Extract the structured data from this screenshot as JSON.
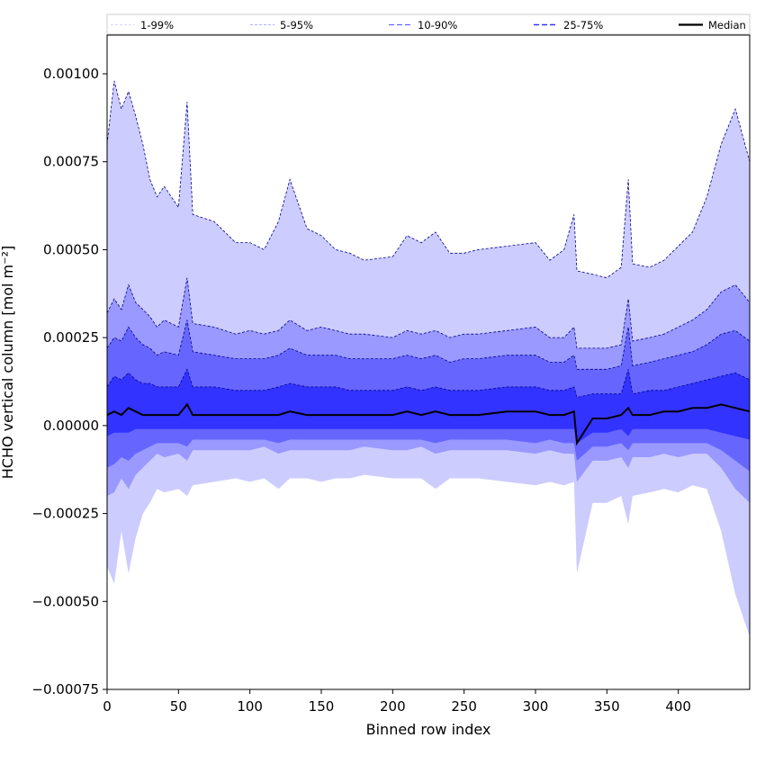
{
  "chart_data": {
    "type": "area",
    "xlabel": "Binned row index",
    "ylabel": "HCHO vertical column [mol m⁻²]",
    "xlim": [
      0,
      450
    ],
    "ylim": [
      -0.00075,
      0.00111
    ],
    "x_ticks": [
      0,
      50,
      100,
      150,
      200,
      250,
      300,
      350,
      400
    ],
    "x_tick_labels": [
      "0",
      "50",
      "100",
      "150",
      "200",
      "250",
      "300",
      "350",
      "400"
    ],
    "y_ticks": [
      -0.00075,
      -0.0005,
      -0.00025,
      0.0,
      0.00025,
      0.0005,
      0.00075,
      0.001
    ],
    "y_tick_labels": [
      "−0.00075",
      "−0.00050",
      "−0.00025",
      "0.00000",
      "0.00025",
      "0.00050",
      "0.00075",
      "0.00100"
    ],
    "grid": false,
    "legend_position": "top",
    "x": [
      0,
      5,
      10,
      15,
      20,
      25,
      30,
      35,
      40,
      50,
      56,
      60,
      75,
      90,
      100,
      110,
      120,
      128,
      140,
      150,
      160,
      170,
      180,
      200,
      210,
      220,
      230,
      240,
      250,
      260,
      280,
      300,
      310,
      320,
      327,
      329,
      340,
      350,
      360,
      365,
      368,
      380,
      390,
      400,
      410,
      420,
      430,
      440,
      450
    ],
    "bands": [
      {
        "name": "1-99%",
        "color": "#ccccff",
        "upper": [
          0.0008,
          0.00098,
          0.0009,
          0.00095,
          0.00088,
          0.0008,
          0.0007,
          0.00065,
          0.00068,
          0.00062,
          0.00092,
          0.0006,
          0.00058,
          0.00052,
          0.00052,
          0.0005,
          0.00058,
          0.0007,
          0.00056,
          0.00054,
          0.0005,
          0.00049,
          0.00047,
          0.00048,
          0.00054,
          0.00052,
          0.00055,
          0.00049,
          0.00049,
          0.0005,
          0.00051,
          0.00052,
          0.00047,
          0.0005,
          0.0006,
          0.00044,
          0.00043,
          0.00042,
          0.00045,
          0.0007,
          0.00046,
          0.00045,
          0.00047,
          0.00051,
          0.00055,
          0.00065,
          0.0008,
          0.0009,
          0.00075
        ],
        "lower": [
          -0.0004,
          -0.00045,
          -0.0003,
          -0.00042,
          -0.00032,
          -0.00025,
          -0.00022,
          -0.00018,
          -0.00019,
          -0.00018,
          -0.0002,
          -0.00017,
          -0.00016,
          -0.00015,
          -0.00016,
          -0.00015,
          -0.00018,
          -0.00015,
          -0.00015,
          -0.00016,
          -0.00015,
          -0.00015,
          -0.00014,
          -0.00015,
          -0.00015,
          -0.00015,
          -0.00018,
          -0.00015,
          -0.00015,
          -0.00015,
          -0.00016,
          -0.00017,
          -0.00016,
          -0.00017,
          -0.00016,
          -0.00042,
          -0.00022,
          -0.00022,
          -0.0002,
          -0.00028,
          -0.0002,
          -0.00019,
          -0.00018,
          -0.00019,
          -0.00017,
          -0.00018,
          -0.0003,
          -0.00048,
          -0.0006
        ]
      },
      {
        "name": "5-95%",
        "color": "#9999ff",
        "upper": [
          0.00032,
          0.00036,
          0.00033,
          0.0004,
          0.00035,
          0.00033,
          0.00031,
          0.00028,
          0.0003,
          0.00028,
          0.00042,
          0.00029,
          0.00028,
          0.00026,
          0.00027,
          0.00026,
          0.00027,
          0.0003,
          0.00027,
          0.00028,
          0.00027,
          0.00026,
          0.00026,
          0.00025,
          0.00027,
          0.00026,
          0.00027,
          0.00025,
          0.00026,
          0.00026,
          0.00027,
          0.00028,
          0.00025,
          0.00025,
          0.00028,
          0.00022,
          0.00022,
          0.00022,
          0.00023,
          0.00036,
          0.00024,
          0.00025,
          0.00026,
          0.00028,
          0.0003,
          0.00033,
          0.00038,
          0.0004,
          0.00035
        ],
        "lower": [
          -0.0002,
          -0.00019,
          -0.00015,
          -0.00018,
          -0.00014,
          -0.00012,
          -0.0001,
          -8e-05,
          -9e-05,
          -8e-05,
          -0.0001,
          -7e-05,
          -7e-05,
          -7e-05,
          -7e-05,
          -6e-05,
          -8e-05,
          -7e-05,
          -7e-05,
          -7e-05,
          -7e-05,
          -7e-05,
          -6e-05,
          -7e-05,
          -7e-05,
          -6e-05,
          -8e-05,
          -7e-05,
          -7e-05,
          -7e-05,
          -7e-05,
          -8e-05,
          -7e-05,
          -8e-05,
          -8e-05,
          -0.00016,
          -0.0001,
          -0.0001,
          -9e-05,
          -0.00012,
          -9e-05,
          -9e-05,
          -8e-05,
          -9e-05,
          -8e-05,
          -8e-05,
          -0.00012,
          -0.00018,
          -0.00022
        ]
      },
      {
        "name": "10-90%",
        "color": "#6666ff",
        "upper": [
          0.00022,
          0.00025,
          0.00024,
          0.00028,
          0.00025,
          0.00023,
          0.00022,
          0.0002,
          0.00021,
          0.0002,
          0.0003,
          0.00021,
          0.0002,
          0.00019,
          0.00019,
          0.00019,
          0.0002,
          0.00022,
          0.0002,
          0.0002,
          0.0002,
          0.00019,
          0.00019,
          0.00019,
          0.0002,
          0.00019,
          0.0002,
          0.00018,
          0.00019,
          0.00019,
          0.0002,
          0.0002,
          0.00018,
          0.00018,
          0.0002,
          0.00016,
          0.00016,
          0.00016,
          0.00017,
          0.00028,
          0.00017,
          0.00018,
          0.00019,
          0.0002,
          0.00021,
          0.00023,
          0.00026,
          0.00027,
          0.00024
        ],
        "lower": [
          -0.00012,
          -0.00011,
          -9e-05,
          -0.0001,
          -8e-05,
          -7e-05,
          -6e-05,
          -5e-05,
          -5e-05,
          -5e-05,
          -6e-05,
          -4e-05,
          -4e-05,
          -4e-05,
          -4e-05,
          -4e-05,
          -5e-05,
          -4e-05,
          -4e-05,
          -4e-05,
          -4e-05,
          -4e-05,
          -4e-05,
          -4e-05,
          -4e-05,
          -4e-05,
          -5e-05,
          -4e-05,
          -4e-05,
          -4e-05,
          -4e-05,
          -5e-05,
          -4e-05,
          -5e-05,
          -5e-05,
          -0.0001,
          -6e-05,
          -6e-05,
          -5e-05,
          -7e-05,
          -5e-05,
          -5e-05,
          -5e-05,
          -5e-05,
          -5e-05,
          -5e-05,
          -7e-05,
          -0.0001,
          -0.00013
        ]
      },
      {
        "name": "25-75%",
        "color": "#3333ff",
        "upper": [
          0.00011,
          0.00014,
          0.00013,
          0.00015,
          0.00013,
          0.00012,
          0.00012,
          0.00011,
          0.00011,
          0.00011,
          0.00016,
          0.00011,
          0.00011,
          0.0001,
          0.0001,
          0.0001,
          0.00011,
          0.00012,
          0.00011,
          0.00011,
          0.00011,
          0.0001,
          0.0001,
          0.0001,
          0.00011,
          0.0001,
          0.00011,
          0.0001,
          0.0001,
          0.0001,
          0.00011,
          0.00011,
          0.0001,
          0.0001,
          0.00011,
          8e-05,
          9e-05,
          9e-05,
          9e-05,
          0.00016,
          9e-05,
          0.0001,
          0.0001,
          0.00011,
          0.00012,
          0.00013,
          0.00014,
          0.00015,
          0.00013
        ],
        "lower": [
          -3e-05,
          -2e-05,
          -2e-05,
          -2e-05,
          -1e-05,
          -1e-05,
          -1e-05,
          -1e-05,
          -1e-05,
          -1e-05,
          -1e-05,
          -1e-05,
          -1e-05,
          -1e-05,
          -1e-05,
          -1e-05,
          -1e-05,
          -1e-05,
          -1e-05,
          -1e-05,
          -1e-05,
          -1e-05,
          -1e-05,
          -1e-05,
          -1e-05,
          -1e-05,
          -1e-05,
          -1e-05,
          -1e-05,
          -1e-05,
          -1e-05,
          -1e-05,
          -1e-05,
          -1e-05,
          -1e-05,
          -5e-05,
          -2e-05,
          -2e-05,
          -1e-05,
          -3e-05,
          -1e-05,
          -1e-05,
          -1e-05,
          -1e-05,
          -1e-05,
          -1e-05,
          -2e-05,
          -3e-05,
          -4e-05
        ]
      }
    ],
    "median": {
      "name": "Median",
      "color": "#000000",
      "values": [
        3e-05,
        4e-05,
        3e-05,
        5e-05,
        4e-05,
        3e-05,
        3e-05,
        3e-05,
        3e-05,
        3e-05,
        6e-05,
        3e-05,
        3e-05,
        3e-05,
        3e-05,
        3e-05,
        3e-05,
        4e-05,
        3e-05,
        3e-05,
        3e-05,
        3e-05,
        3e-05,
        3e-05,
        4e-05,
        3e-05,
        4e-05,
        3e-05,
        3e-05,
        3e-05,
        4e-05,
        4e-05,
        3e-05,
        3e-05,
        4e-05,
        -5e-05,
        2e-05,
        2e-05,
        3e-05,
        5e-05,
        3e-05,
        3e-05,
        4e-05,
        4e-05,
        5e-05,
        5e-05,
        6e-05,
        5e-05,
        4e-05
      ]
    },
    "legend": [
      {
        "label": "1-99%",
        "color": "#ccccff",
        "dash": "3,2",
        "width": 0.8
      },
      {
        "label": "5-95%",
        "color": "#9999ff",
        "dash": "3,2",
        "width": 0.8
      },
      {
        "label": "10-90%",
        "color": "#6666ff",
        "dash": "6,3",
        "width": 1.2
      },
      {
        "label": "25-75%",
        "color": "#3333ff",
        "dash": "6,3",
        "width": 1.4
      },
      {
        "label": "Median",
        "color": "#000000",
        "dash": "",
        "width": 2.2
      }
    ]
  }
}
